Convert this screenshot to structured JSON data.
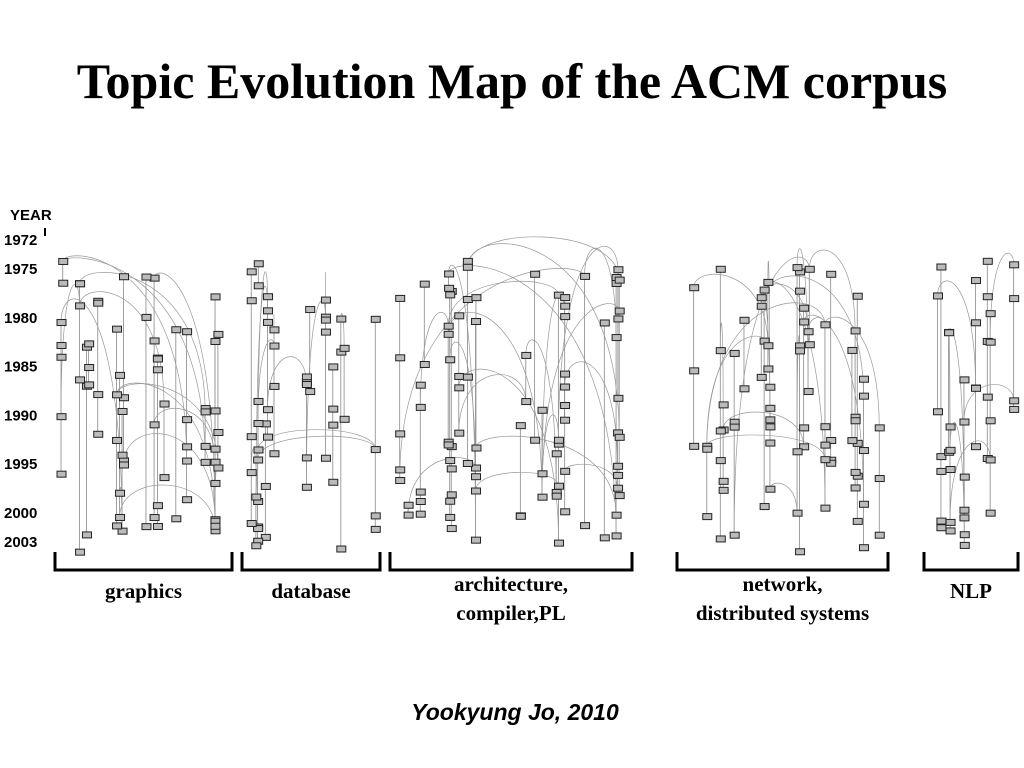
{
  "title": "Topic Evolution Map of the ACM corpus",
  "year_axis": {
    "label": "YEAR",
    "ticks": [
      1972,
      1975,
      1980,
      1985,
      1990,
      1995,
      2000,
      2003
    ]
  },
  "groups": [
    {
      "label": [
        "graphics"
      ]
    },
    {
      "label": [
        "database"
      ]
    },
    {
      "label": [
        "architecture,",
        "compiler,PL"
      ]
    },
    {
      "label": [
        "network,",
        "distributed systems"
      ]
    },
    {
      "label": [
        "NLP"
      ]
    }
  ],
  "author": "Yookyung Jo, 2010"
}
